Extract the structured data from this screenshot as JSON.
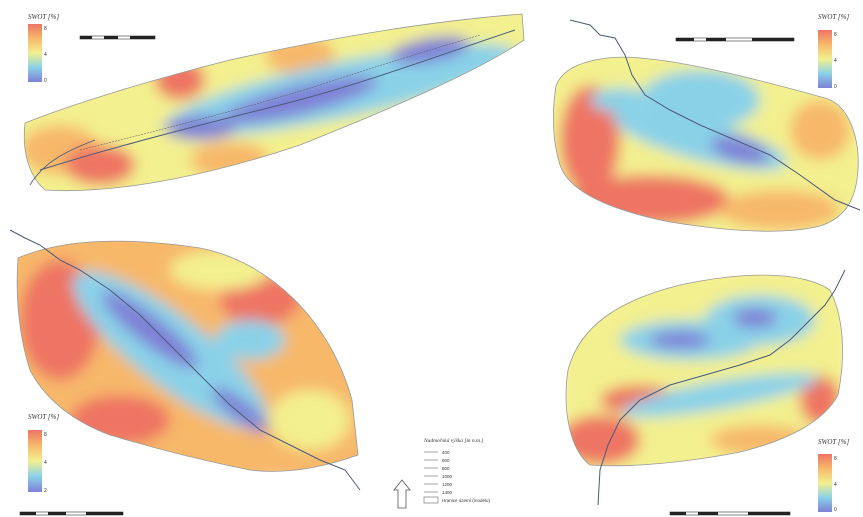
{
  "legends": [
    {
      "title": "SWOT [%]",
      "ticks": [
        "8",
        "4",
        "0"
      ]
    },
    {
      "title": "SWOT [%]",
      "ticks": [
        "8",
        "4",
        "0"
      ]
    },
    {
      "title": "SWOT [%]",
      "ticks": [
        "8",
        "4",
        "2"
      ]
    },
    {
      "title": "SWOT [%]",
      "ticks": [
        "8",
        "4",
        "0"
      ]
    }
  ],
  "contour_legend": {
    "title": "Nadmořská výška [m n.m.]",
    "items": [
      "400",
      "600",
      "800",
      "1000",
      "1200",
      "1400"
    ],
    "boundary": "Hranice území (modelu)"
  },
  "colors": {
    "low": "#7f80d6",
    "mid_low": "#8ad1e8",
    "mid": "#f3f08f",
    "mid_high": "#f7b86b",
    "high": "#ee7564"
  }
}
